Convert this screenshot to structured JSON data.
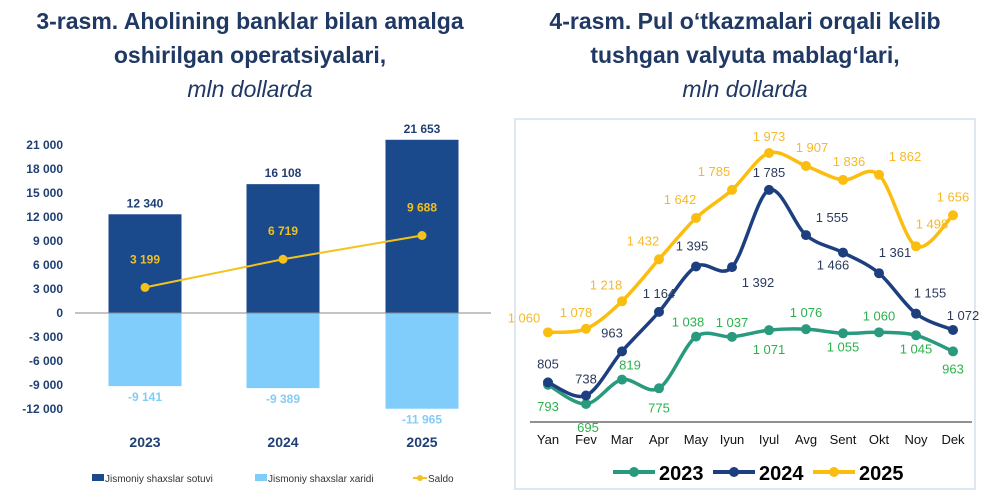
{
  "chart_data": [
    {
      "type": "bar",
      "title": "3-rasm. Aholining banklar bilan amalga oshirilgan operatsiyalari,",
      "unit": "mln dollarda",
      "categories": [
        "2023",
        "2024",
        "2025"
      ],
      "ylim": [
        -12000,
        21000
      ],
      "yticks": [
        "21 000",
        "18 000",
        "15 000",
        "12 000",
        "9 000",
        "6 000",
        "3 000",
        "0",
        "-3 000",
        "-6 000",
        "-9 000",
        "-12 000"
      ],
      "ytick_values": [
        21000,
        18000,
        15000,
        12000,
        9000,
        6000,
        3000,
        0,
        -3000,
        -6000,
        -9000,
        -12000
      ],
      "series": [
        {
          "name": "Jismoniy shaxslar sotuvi",
          "type": "bar",
          "values": [
            12340,
            16108,
            21653
          ],
          "labels": [
            "12 340",
            "16 108",
            "21 653"
          ],
          "color": "#1b4a8c"
        },
        {
          "name": "Jismoniy shaxslar xaridi",
          "type": "bar",
          "values": [
            -9141,
            -9389,
            -11965
          ],
          "labels": [
            "-9 141",
            "-9 389",
            "-11 965"
          ],
          "color": "#80ccfb"
        },
        {
          "name": "Saldo",
          "type": "line",
          "values": [
            3199,
            6719,
            9688
          ],
          "labels": [
            "3 199",
            "6 719",
            "9 688"
          ],
          "color": "#f5c21b"
        }
      ],
      "legend": "bottom"
    },
    {
      "type": "line",
      "title": "4-rasm. Pul o‘tkazmalari orqali kelib tushgan valyuta mablag‘lari,",
      "unit": "mln dollarda",
      "categories": [
        "Yan",
        "Fev",
        "Mar",
        "Apr",
        "May",
        "Iyun",
        "Iyul",
        "Avg",
        "Sent",
        "Okt",
        "Noy",
        "Dek"
      ],
      "series": [
        {
          "name": "2023",
          "values": [
            793,
            695,
            819,
            775,
            1038,
            1037,
            1071,
            1076,
            1055,
            1060,
            1045,
            963
          ],
          "labels": [
            "793",
            "695",
            "819",
            "775",
            "1 038",
            "1 037",
            "1 071",
            "1 076",
            "1 055",
            "1 060",
            "1 045",
            "963"
          ],
          "color": "#2a9a7e",
          "label_color": "#2bb24c"
        },
        {
          "name": "2024",
          "values": [
            805,
            738,
            963,
            1164,
            1395,
            1392,
            1785,
            1555,
            1466,
            1361,
            1155,
            1072
          ],
          "labels": [
            "805",
            "738",
            "963",
            "1 164",
            "1 395",
            "1 392",
            "1 785",
            "1 555",
            "1 466",
            "1 361",
            "1 155",
            "1 072"
          ],
          "color": "#1d3f80",
          "label_color": "#2a3a5c"
        },
        {
          "name": "2025",
          "values": [
            1060,
            1078,
            1218,
            1432,
            1642,
            1785,
            1973,
            1907,
            1836,
            1862,
            1498,
            1656
          ],
          "labels": [
            "1 060",
            "1 078",
            "1 218",
            "1 432",
            "1 642",
            "1 785",
            "1 973",
            "1 907",
            "1 836",
            "1 862",
            "1 498",
            "1 656"
          ],
          "color": "#fbbd0f",
          "label_color": "#f7b928"
        }
      ],
      "legend": "bottom"
    }
  ]
}
